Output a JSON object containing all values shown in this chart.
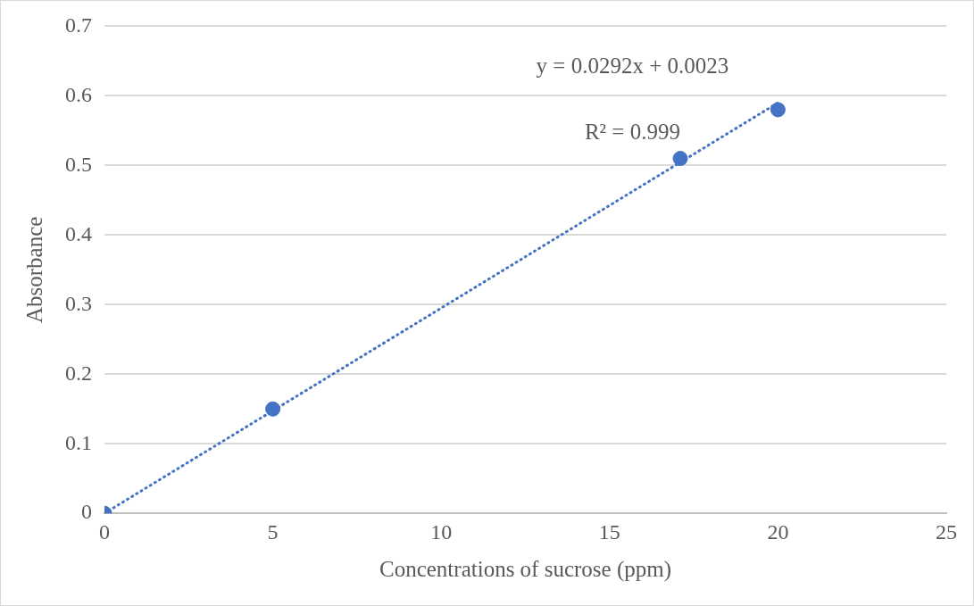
{
  "chart_data": {
    "type": "scatter",
    "xlabel": "Concentrations of sucrose (ppm)",
    "ylabel": "Absorbance",
    "x": [
      0,
      5,
      17.1,
      20
    ],
    "series": [
      {
        "color": "#4472c4",
        "values": [
          0,
          0.15,
          0.51,
          0.58
        ],
        "marker": "circle"
      },
      {
        "type": "line",
        "color": "#4472c4",
        "x": [
          0,
          20
        ],
        "values": [
          0,
          0.59
        ],
        "line_style": "dotted",
        "marker": "none"
      }
    ],
    "xlim": [
      0,
      25
    ],
    "xticks": [
      0,
      5,
      10,
      15,
      20,
      25
    ],
    "ylim": [
      0,
      0.7
    ],
    "yticks": [
      0,
      0.1,
      0.2,
      0.3,
      0.4,
      0.5,
      0.6,
      0.7
    ],
    "grid": "y",
    "legend": false,
    "annotations": [
      "y = 0.0292x + 0.0023",
      "R² = 0.999"
    ]
  }
}
